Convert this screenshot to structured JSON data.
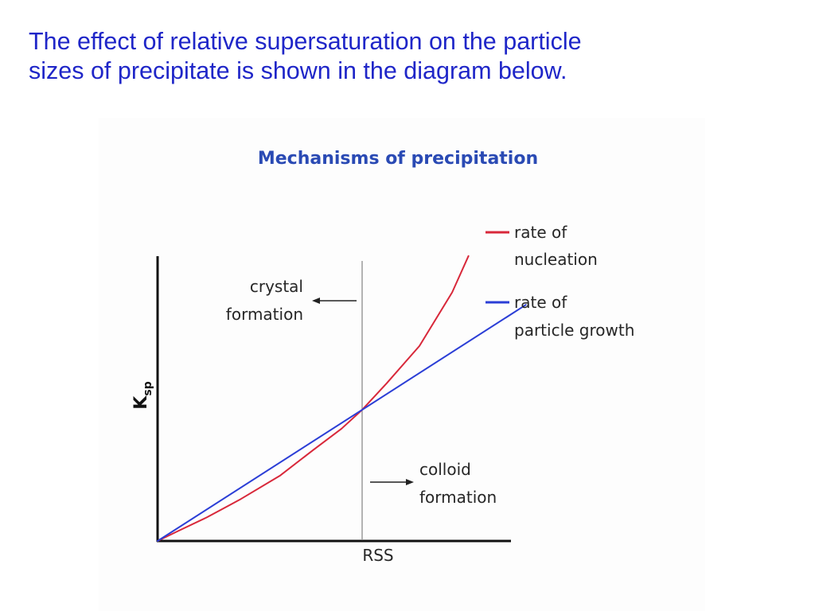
{
  "heading": {
    "line1": "The effect of relative supersaturation on the particle",
    "line2": "sizes of precipitate is shown in the diagram below."
  },
  "chart_data": {
    "type": "line",
    "title": "Mechanisms of precipitation",
    "xlabel": "RSS",
    "ylabel": {
      "main": "K",
      "sub": "sp"
    },
    "grid": false,
    "legend_position": "top-right",
    "x_ticks": [],
    "y_ticks": [],
    "vertical_marker": {
      "x": 0.5,
      "label": "RSS"
    },
    "series": [
      {
        "name": "rate of nucleation",
        "legend_lines": [
          "rate of",
          "nucleation"
        ],
        "color": "#d8283a",
        "x": [
          0,
          0.05,
          0.12,
          0.2,
          0.3,
          0.38,
          0.45,
          0.5,
          0.56,
          0.64,
          0.72,
          0.76
        ],
        "y": [
          0,
          0.056,
          0.132,
          0.231,
          0.368,
          0.51,
          0.631,
          0.736,
          0.885,
          1.094,
          1.395,
          1.599
        ]
      },
      {
        "name": "rate of particle growth",
        "legend_lines": [
          "rate of",
          "particle growth"
        ],
        "color": "#2b3ed6",
        "x": [
          0,
          0.9
        ],
        "y": [
          0,
          1.325
        ]
      }
    ],
    "annotations": [
      {
        "lines": [
          "crystal",
          "formation"
        ],
        "arrow": "left"
      },
      {
        "lines": [
          "colloid",
          "formation"
        ],
        "arrow": "right"
      }
    ]
  }
}
